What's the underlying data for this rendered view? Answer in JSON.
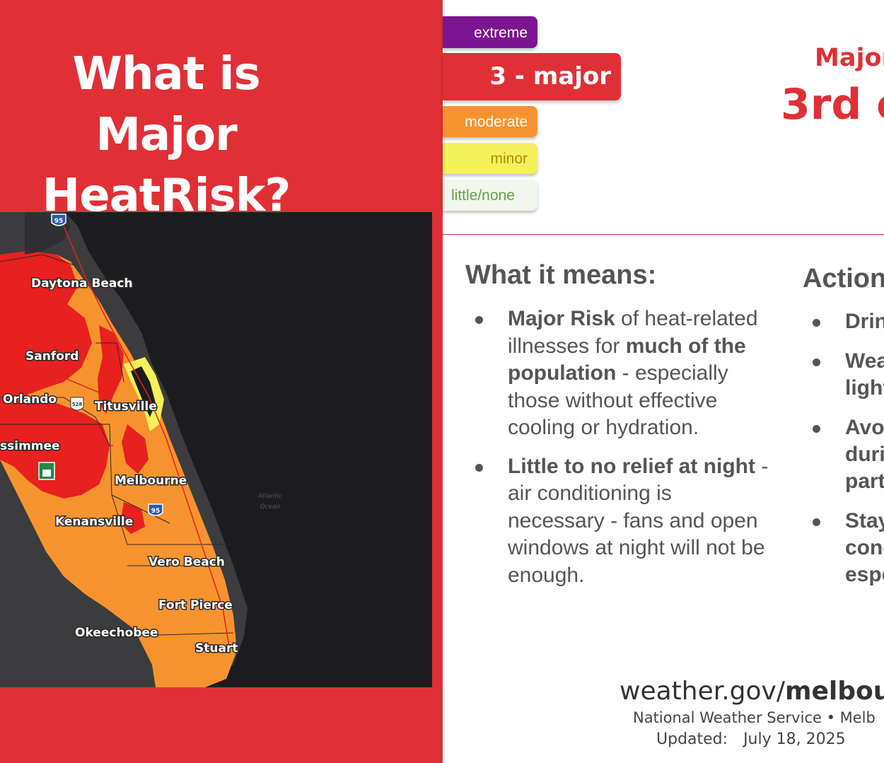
{
  "title": {
    "line1": "What is Major",
    "line2": "HeatRisk?"
  },
  "legend": {
    "extreme": "extreme",
    "major": "3 - major",
    "moderate": "moderate",
    "minor": "minor",
    "none": "little/none",
    "colors": {
      "extreme": "#7b1591",
      "major": "#e03036",
      "moderate": "#f7932e",
      "minor": "#f4f05a",
      "none": "#f1f7ec"
    }
  },
  "heading": {
    "top": "Major",
    "big": "3rd c"
  },
  "map": {
    "cities": [
      "Daytona Beach",
      "Sanford",
      "Orlando",
      "Titusville",
      "ssimmee",
      "Melbourne",
      "Kenansville",
      "Vero Beach",
      "Fort Pierce",
      "Okeechobee",
      "Stuart"
    ],
    "ocean_line1": "Atlantic",
    "ocean_line2": "Ocean",
    "shields": [
      "95",
      "95",
      "528"
    ]
  },
  "means": {
    "title": "What it means:",
    "items": [
      {
        "bold1": "Major Risk",
        "text1": " of heat-related illnesses for ",
        "bold2": "much of the population",
        "text2": " - especially those without effective cooling or hydration."
      },
      {
        "bold1": "Little to no relief at night",
        "text1": " - air conditioning is necessary - fans and open windows at night will not be enough."
      }
    ]
  },
  "actions": {
    "title": "Action",
    "items": [
      "Drin",
      "Wea light",
      "Avo duri part",
      "Stay conc espe"
    ]
  },
  "footer": {
    "site_prefix": "weather.gov/",
    "site_bold": "melbou",
    "office": "National Weather Service • Melb",
    "updated_label": "Updated:",
    "updated_date": "July 18, 2025"
  },
  "colors": {
    "red": "#e03036",
    "text_gray": "#555555"
  }
}
